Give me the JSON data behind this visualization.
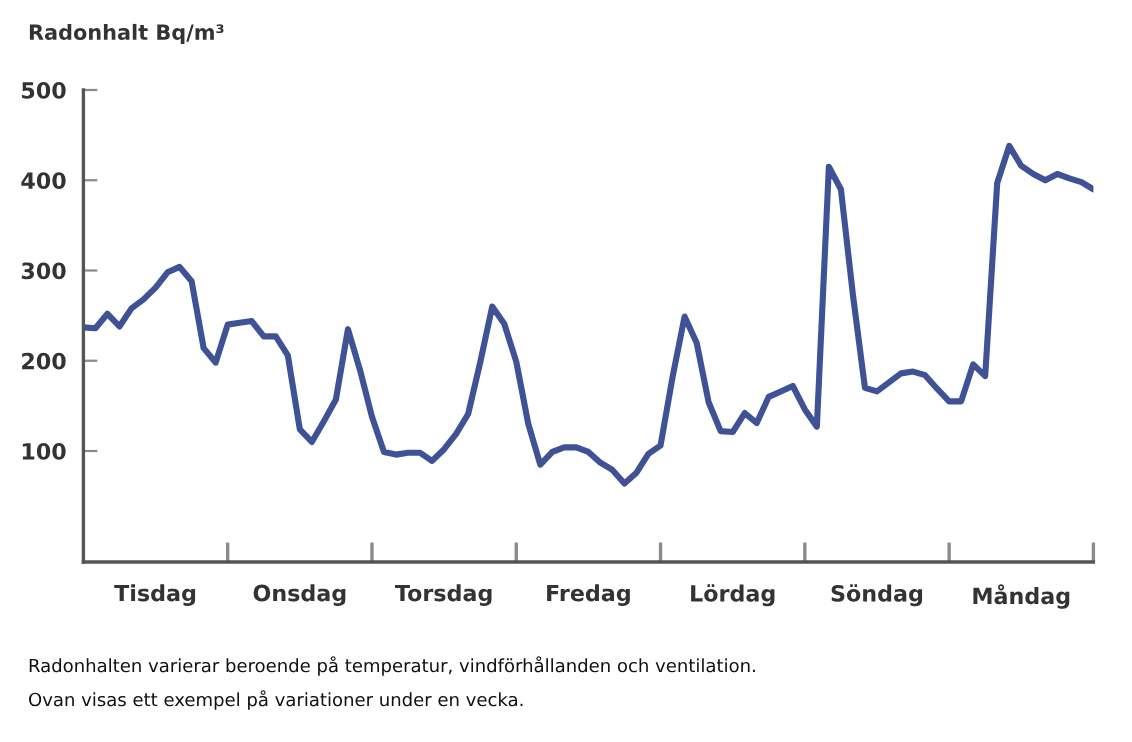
{
  "chart_data": {
    "type": "line",
    "ylabel": "Radonhalt Bq/m³",
    "ylim": [
      -23,
      500
    ],
    "yticks": [
      100,
      200,
      300,
      400,
      500
    ],
    "categories": [
      null,
      null,
      null,
      null,
      null,
      null,
      "Tisdag",
      null,
      null,
      null,
      null,
      null,
      null,
      null,
      null,
      null,
      null,
      null,
      "Onsdag",
      null,
      null,
      null,
      null,
      null,
      null,
      null,
      null,
      null,
      null,
      null,
      "Torsdag",
      null,
      null,
      null,
      null,
      null,
      null,
      null,
      null,
      null,
      null,
      null,
      "Fredag",
      null,
      null,
      null,
      null,
      null,
      null,
      null,
      null,
      null,
      null,
      null,
      "Lördag",
      null,
      null,
      null,
      null,
      null,
      null,
      null,
      null,
      null,
      null,
      null,
      "Söndag",
      null,
      null,
      null,
      null,
      null,
      null,
      null,
      null,
      null,
      null,
      null,
      "Måndag",
      null,
      null,
      null,
      null,
      null,
      null
    ],
    "line_style": "solid",
    "series": [
      {
        "color": "#3f5296",
        "values": [
          237,
          236,
          252,
          238,
          258,
          268,
          281,
          298,
          304,
          288,
          214,
          198,
          240,
          242,
          244,
          227,
          227,
          206,
          124,
          110,
          133,
          157,
          235,
          190,
          138,
          99,
          96,
          98,
          98,
          89,
          102,
          119,
          141,
          198,
          260,
          241,
          199,
          130,
          85,
          99,
          104,
          104,
          99,
          87,
          79,
          64,
          76,
          97,
          106,
          182,
          249,
          220,
          154,
          122,
          121,
          142,
          131,
          160,
          166,
          172,
          146,
          127,
          415,
          390,
          273,
          170,
          166,
          176,
          186,
          188,
          184,
          169,
          155,
          155,
          196,
          183,
          397,
          438,
          416,
          407,
          400,
          407,
          402,
          398,
          390
        ]
      }
    ],
    "annotations": [
      "Radonhalten varierar beroende på temperatur, vindförhållanden och ventilation.",
      "Ovan visas ett exempel på variationer under en vecka."
    ]
  }
}
